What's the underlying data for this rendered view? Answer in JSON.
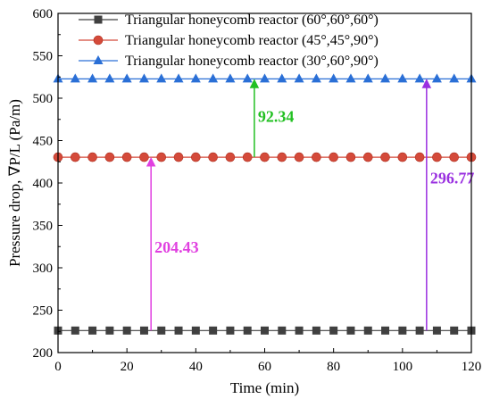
{
  "chart_data": {
    "type": "line",
    "xlabel": "Time (min)",
    "ylabel": "Pressure drop, ∇P/L (Pa/m)",
    "xlim": [
      0,
      120
    ],
    "ylim": [
      200,
      600
    ],
    "xticks": [
      0,
      20,
      40,
      60,
      80,
      100,
      120
    ],
    "yticks": [
      200,
      250,
      300,
      350,
      400,
      450,
      500,
      550,
      600
    ],
    "grid": false,
    "legend_position": "top",
    "x": [
      0,
      5,
      10,
      15,
      20,
      25,
      30,
      35,
      40,
      45,
      50,
      55,
      60,
      65,
      70,
      75,
      80,
      85,
      90,
      95,
      100,
      105,
      110,
      115,
      120
    ],
    "series": [
      {
        "name": "Triangular honeycomb reactor (60°,60°,60°)",
        "value": 226.0,
        "color": "#404040",
        "marker": "square"
      },
      {
        "name": "Triangular honeycomb reactor (45°,45°,90°)",
        "value": 430.43,
        "color": "#d44a3a",
        "marker": "circle"
      },
      {
        "name": "Triangular honeycomb reactor (30°,60°,90°)",
        "value": 522.77,
        "color": "#2a6fd6",
        "marker": "triangle"
      }
    ],
    "annotations": [
      {
        "text": "204.43",
        "x": 27,
        "from": 226.0,
        "to": 430.43,
        "color": "#e040e0"
      },
      {
        "text": "92.34",
        "x": 57,
        "from": 430.43,
        "to": 522.77,
        "color": "#22c022"
      },
      {
        "text": "296.77",
        "x": 107,
        "from": 226.0,
        "to": 522.77,
        "color": "#9a30e0"
      }
    ]
  }
}
